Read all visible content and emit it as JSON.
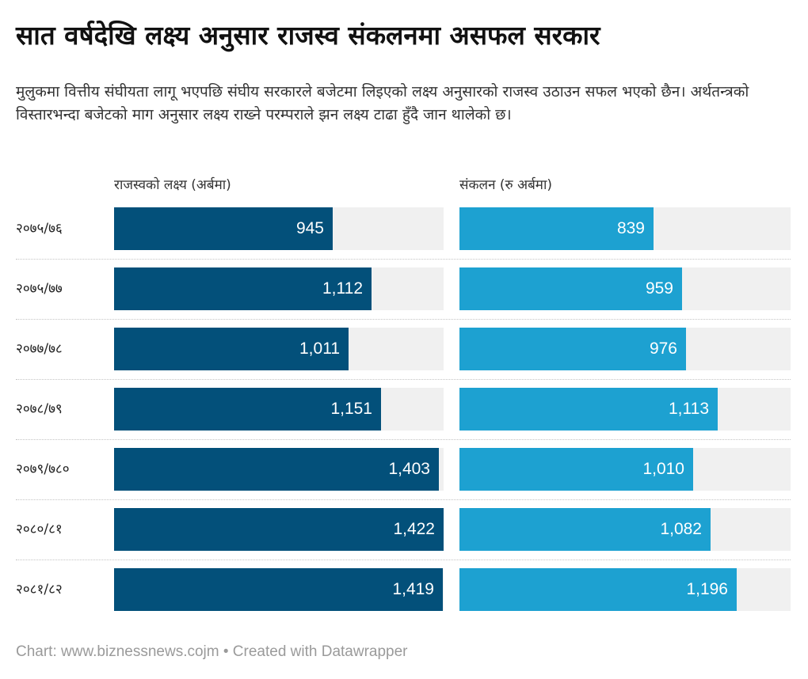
{
  "title": "सात वर्षदेखि लक्ष्य अनुसार राजस्व संकलनमा असफल सरकार",
  "description": "मुलुकमा वित्तीय संघीयता लागू भएपछि संघीय सरकारले बजेटमा लिइएको लक्ष्य अनुसारको राजस्व उठाउन सफल भएको छैन। अर्थतन्त्रको विस्तारभन्दा बजेटको माग अनुसार लक्ष्य राख्ने परम्पराले झन लक्ष्य टाढा हुँदै जान थालेको छ।",
  "footer": "Chart: www.biznessnews.cojm • Created with Datawrapper",
  "colors": {
    "target": "#03507a",
    "collection": "#1da1d1",
    "track": "#f0f0f0"
  },
  "chart_data": {
    "type": "bar",
    "orientation": "horizontal",
    "title": "सात वर्षदेखि लक्ष्य अनुसार राजस्व संकलनमा असफल सरकार",
    "categories": [
      "२०७५/७६",
      "२०७५/७७",
      "२०७७/७८",
      "२०७८/७९",
      "२०७९/७८०",
      "२०८०/८१",
      "२०८१/८२"
    ],
    "series": [
      {
        "name": "राजस्वको लक्ष्य (अर्बमा)",
        "values": [
          945,
          1112,
          1011,
          1151,
          1403,
          1422,
          1419
        ],
        "labels": [
          "945",
          "1,112",
          "1,011",
          "1,151",
          "1,403",
          "1,422",
          "1,419"
        ]
      },
      {
        "name": "संकलन (रु अर्बमा)",
        "values": [
          839,
          959,
          976,
          1113,
          1010,
          1082,
          1196
        ],
        "labels": [
          "839",
          "959",
          "976",
          "1,113",
          "1,010",
          "1,082",
          "1,196"
        ]
      }
    ],
    "xlim": [
      0,
      1422
    ],
    "grid": false,
    "legend": "column headers"
  }
}
